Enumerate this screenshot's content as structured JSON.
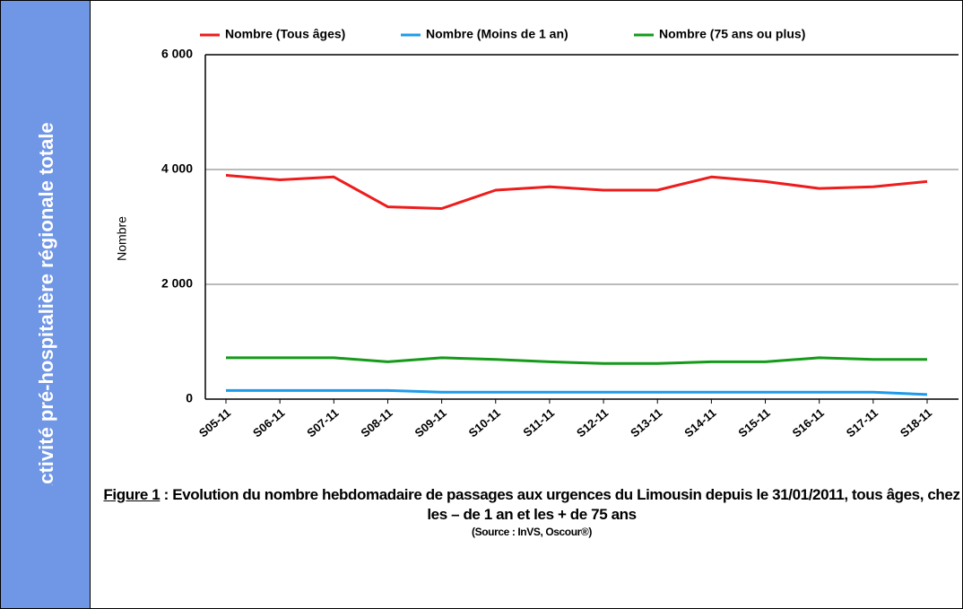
{
  "sidebar": "Activité pré-hospitalière régionale totale",
  "chart_data": {
    "type": "line",
    "y_label": "Nombre",
    "categories": [
      "S05-11",
      "S06-11",
      "S07-11",
      "S08-11",
      "S09-11",
      "S10-11",
      "S11-11",
      "S12-11",
      "S13-11",
      "S14-11",
      "S15-11",
      "S16-11",
      "S17-11",
      "S18-11"
    ],
    "series": [
      {
        "name": "Nombre (Tous âges)",
        "color": "#ee1c1c",
        "values": [
          3900,
          3820,
          3870,
          3350,
          3320,
          3640,
          3700,
          3640,
          3640,
          3870,
          3790,
          3670,
          3700,
          3790
        ]
      },
      {
        "name": "Nombre (Moins de 1 an)",
        "color": "#1e9be8",
        "values": [
          150,
          150,
          150,
          150,
          120,
          120,
          120,
          120,
          120,
          120,
          120,
          120,
          120,
          80
        ]
      },
      {
        "name": "Nombre (75 ans ou plus)",
        "color": "#159a1a",
        "values": [
          720,
          720,
          720,
          650,
          720,
          690,
          650,
          620,
          620,
          650,
          650,
          720,
          690,
          690
        ]
      }
    ],
    "ylim": [
      0,
      6000
    ],
    "yticks": [
      {
        "value": 0,
        "label": "0"
      },
      {
        "value": 2000,
        "label": "2 000"
      },
      {
        "value": 4000,
        "label": "4 000"
      },
      {
        "value": 6000,
        "label": "6 000"
      }
    ],
    "grid": true,
    "legend": "top"
  },
  "caption": {
    "label": "Figure 1",
    "text": " : Evolution du nombre hebdomadaire de passages aux urgences du Limousin depuis le 31/01/2011, tous âges, chez les – de 1 an et les  + de 75 ans",
    "source": "(Source : InVS, Oscour®)"
  }
}
